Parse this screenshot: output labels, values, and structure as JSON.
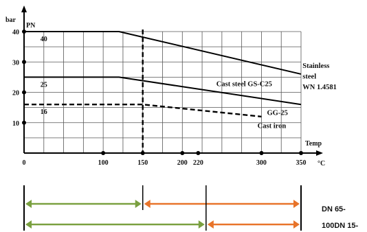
{
  "chart_data": {
    "type": "line",
    "ylabel_unit": "bar",
    "ylabel": "PN",
    "xlabel": "Temp",
    "xlabel_unit": "°C",
    "xlim": [
      0,
      350
    ],
    "ylim": [
      0,
      40
    ],
    "grid": true,
    "x_tick_labels": [
      "0",
      "100",
      "150",
      "200",
      "220",
      "300",
      "350"
    ],
    "x_tick_values": [
      0,
      100,
      150,
      200,
      220,
      300,
      350
    ],
    "x_tick_dots": [
      100,
      150,
      200,
      220,
      300,
      350
    ],
    "y_tick_labels": [
      "10",
      "20",
      "30",
      "40"
    ],
    "y_tick_values": [
      10,
      20,
      30,
      40
    ],
    "pn_labels": [
      {
        "text": "40",
        "x": 25,
        "y": 40
      },
      {
        "text": "25",
        "x": 25,
        "y": 25
      },
      {
        "text": "16",
        "x": 25,
        "y": 16
      }
    ],
    "series": [
      {
        "name": "Stainless steel WN 1.4581",
        "style": "solid",
        "x": [
          0,
          120,
          350
        ],
        "y": [
          40,
          40,
          26
        ]
      },
      {
        "name": "Cast steel GS-C25",
        "style": "solid",
        "x": [
          0,
          120,
          350
        ],
        "y": [
          25,
          25,
          16
        ]
      },
      {
        "name": "GG-25 Cast iron",
        "style": "dashed",
        "x": [
          0,
          150,
          300
        ],
        "y": [
          16,
          16,
          12
        ]
      }
    ],
    "vertical_marker": {
      "x": 150,
      "style": "dashed"
    },
    "annotations": [
      {
        "text": "Stainless",
        "x": 352,
        "y": 28
      },
      {
        "text": "steel",
        "x": 352,
        "y": 24.5
      },
      {
        "text": "WN 1.4581",
        "x": 352,
        "y": 21
      },
      {
        "text": "Cast steel GS-C25",
        "x": 243,
        "y": 22
      },
      {
        "text": "GG-25",
        "x": 307,
        "y": 12.5
      },
      {
        "text": "Cast iron",
        "x": 295,
        "y": 8.2
      }
    ],
    "ranges": [
      {
        "row": 1,
        "segments": [
          {
            "from": 0,
            "to": 150,
            "color": "#7aa040"
          },
          {
            "from": 150,
            "to": 350,
            "color": "#e8742a"
          }
        ]
      },
      {
        "row": 2,
        "segments": [
          {
            "from": 0,
            "to": 230,
            "color": "#7aa040"
          },
          {
            "from": 230,
            "to": 350,
            "color": "#e8742a"
          }
        ]
      }
    ],
    "range_labels": [
      "DN 65-",
      "100DN 15-"
    ]
  }
}
